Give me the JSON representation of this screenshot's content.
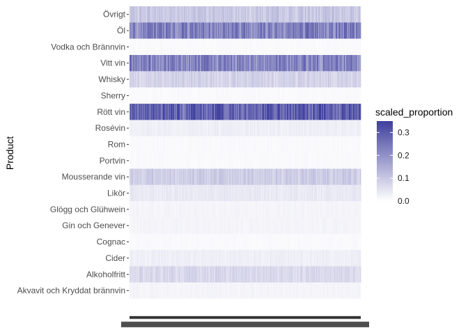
{
  "chart_data": {
    "type": "heatmap",
    "ylabel": "Product",
    "categories": [
      "Övrigt",
      "Öl",
      "Vodka och Brännvin",
      "Vitt vin",
      "Whisky",
      "Sherry",
      "Rött vin",
      "Rosévin",
      "Rom",
      "Portvin",
      "Mousserande vin",
      "Likör",
      "Glögg och Glühwein",
      "Gin och Genever",
      "Cognac",
      "Cider",
      "Alkoholfritt",
      "Akvavit och Kryddat brännvin"
    ],
    "row_mean_values": [
      0.1,
      0.23,
      0.01,
      0.22,
      0.08,
      0.01,
      0.29,
      0.03,
      0.01,
      0.01,
      0.09,
      0.04,
      0.02,
      0.02,
      0.01,
      0.03,
      0.07,
      0.02
    ],
    "x_columns": 400,
    "legend": {
      "title": "scaled_proportion",
      "ticks": [
        0.0,
        0.1,
        0.2,
        0.3
      ],
      "tick_labels": [
        "0.3",
        "0.2",
        "0.1",
        "0.0"
      ],
      "range": [
        0,
        0.35
      ],
      "low_color": "#ffffff",
      "high_color": "#3f3f9e",
      "position": "right"
    }
  }
}
